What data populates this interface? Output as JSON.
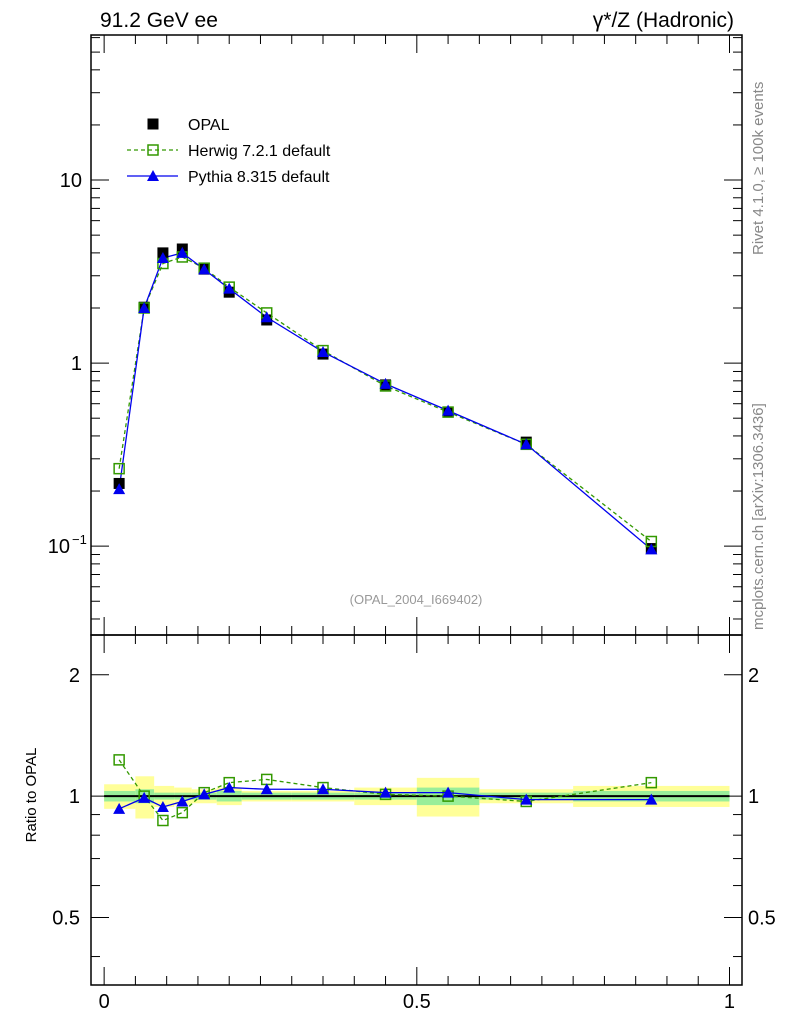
{
  "chart_data": [
    {
      "type": "line",
      "title_left": "91.2 GeV ee",
      "title_right": "γ*/Z (Hadronic)",
      "yscale": "log",
      "ylim": [
        0.0327,
        62
      ],
      "xlim": [
        -0.021,
        1.02
      ],
      "y_tick_labels": [
        {
          "v": 10,
          "label": "10"
        },
        {
          "v": 1,
          "label": "1"
        },
        {
          "v": 0.1,
          "label": "10",
          "sup": "−1"
        }
      ],
      "watermark": "(OPAL_2004_I669402)",
      "side_label_top": "Rivet 4.1.0, ≥ 100k events",
      "side_label_bottom": "mcplots.cern.ch [arXiv:1306.3436]",
      "legend_position": "top-left",
      "x": [
        0.024,
        0.064,
        0.094,
        0.125,
        0.16,
        0.2,
        0.26,
        0.35,
        0.45,
        0.55,
        0.675,
        0.875
      ],
      "series": [
        {
          "name": "OPAL",
          "color": "#000000",
          "marker": "filled-square",
          "values": [
            0.22,
            2.02,
            4.0,
            4.2,
            3.26,
            2.44,
            1.72,
            1.12,
            0.76,
            0.54,
            0.37,
            0.097
          ]
        },
        {
          "name": "Herwig 7.2.1 default",
          "color": "#339900",
          "marker": "open-square",
          "line": "dashed",
          "values": [
            0.265,
            2.0,
            3.5,
            3.8,
            3.3,
            2.6,
            1.88,
            1.17,
            0.75,
            0.54,
            0.36,
            0.106
          ]
        },
        {
          "name": "Pythia 8.315 default",
          "color": "#0000ee",
          "marker": "triangle",
          "line": "solid",
          "values": [
            0.205,
            2.0,
            3.75,
            4.0,
            3.25,
            2.55,
            1.78,
            1.15,
            0.77,
            0.55,
            0.36,
            0.096
          ]
        }
      ]
    },
    {
      "type": "line",
      "ylabel": "Ratio to OPAL",
      "yscale": "log",
      "ylim": [
        0.34,
        2.51
      ],
      "xlim": [
        -0.021,
        1.02
      ],
      "y_tick_labels": [
        {
          "v": 2,
          "label": "2"
        },
        {
          "v": 1,
          "label": "1"
        },
        {
          "v": 0.5,
          "label": "0.5"
        }
      ],
      "x_tick_labels": [
        {
          "v": 0,
          "label": "0"
        },
        {
          "v": 0.5,
          "label": "0.5"
        },
        {
          "v": 1,
          "label": "1"
        }
      ],
      "bin_edges": [
        0,
        0.05,
        0.08,
        0.112,
        0.14,
        0.18,
        0.22,
        0.3,
        0.4,
        0.5,
        0.6,
        0.75,
        1.0
      ],
      "band_total": [
        0.07,
        0.12,
        0.06,
        0.05,
        0.04,
        0.05,
        0.03,
        0.03,
        0.05,
        0.11,
        0.04,
        0.06
      ],
      "band_stat": [
        0.03,
        0.04,
        0.02,
        0.02,
        0.02,
        0.03,
        0.02,
        0.02,
        0.02,
        0.05,
        0.02,
        0.03
      ],
      "x": [
        0.024,
        0.064,
        0.094,
        0.125,
        0.16,
        0.2,
        0.26,
        0.35,
        0.45,
        0.55,
        0.675,
        0.875
      ],
      "series": [
        {
          "name": "Herwig 7.2.1 default",
          "color": "#339900",
          "values": [
            1.23,
            1.0,
            0.87,
            0.91,
            1.02,
            1.08,
            1.1,
            1.05,
            1.01,
            1.0,
            0.97,
            1.08
          ]
        },
        {
          "name": "Pythia 8.315 default",
          "color": "#0000ee",
          "values": [
            0.93,
            0.99,
            0.94,
            0.97,
            1.01,
            1.05,
            1.04,
            1.04,
            1.02,
            1.02,
            0.98,
            0.98
          ]
        }
      ]
    }
  ]
}
